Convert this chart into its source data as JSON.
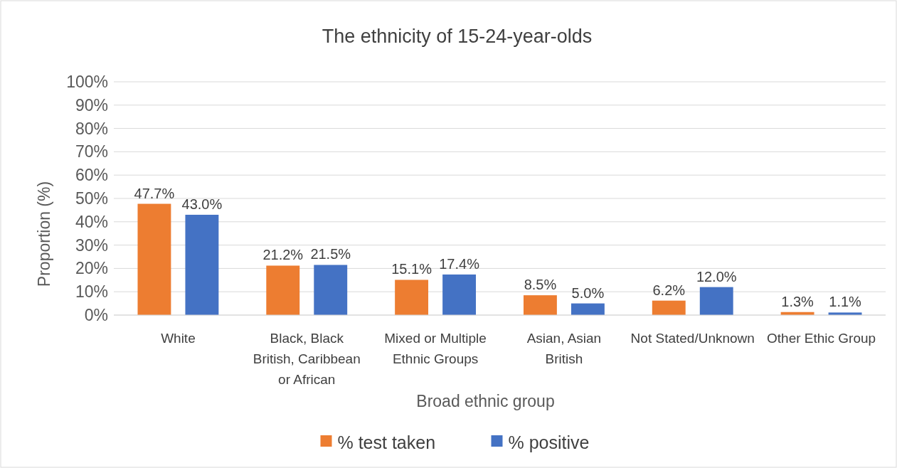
{
  "chart_data": {
    "type": "bar",
    "title": "The ethnicity of 15-24-year-olds",
    "xlabel": "Broad ethnic group",
    "ylabel": "Proportion (%)",
    "categories": [
      "White",
      "Black, Black British, Caribbean or African",
      "Mixed or Multiple Ethnic Groups",
      "Asian, Asian British",
      "Not Stated/Unknown",
      "Other Ethic Group"
    ],
    "series": [
      {
        "name": "% test taken",
        "color": "#ed7d31",
        "values": [
          47.7,
          21.2,
          15.1,
          8.5,
          6.2,
          1.3
        ]
      },
      {
        "name": "% positive",
        "color": "#4472c4",
        "values": [
          43.0,
          21.5,
          17.4,
          5.0,
          12.0,
          1.1
        ]
      }
    ],
    "ylim": [
      0,
      100
    ],
    "yticks": [
      {
        "value": 0,
        "label": "0%"
      },
      {
        "value": 10,
        "label": "10%"
      },
      {
        "value": 20,
        "label": "20%"
      },
      {
        "value": 30,
        "label": "30%"
      },
      {
        "value": 40,
        "label": "40%"
      },
      {
        "value": 50,
        "label": "50%"
      },
      {
        "value": 60,
        "label": "60%"
      },
      {
        "value": 70,
        "label": "70%"
      },
      {
        "value": 80,
        "label": "80%"
      },
      {
        "value": 90,
        "label": "90%"
      },
      {
        "value": 100,
        "label": "100%"
      }
    ],
    "value_labels": [
      [
        "47.7%",
        "21.2%",
        "15.1%",
        "8.5%",
        "6.2%",
        "1.3%"
      ],
      [
        "43.0%",
        "21.5%",
        "17.4%",
        "5.0%",
        "12.0%",
        "1.1%"
      ]
    ],
    "grid": "y",
    "legend": "bottom"
  }
}
